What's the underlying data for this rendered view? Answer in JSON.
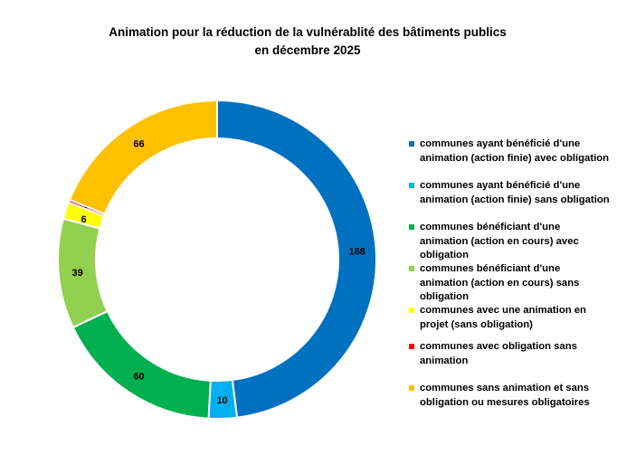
{
  "chart_data": {
    "type": "pie",
    "variant": "donut",
    "title": "Animation pour la réduction de la vulnérablité des bâtiments publics",
    "subtitle": "en décembre 2025",
    "legend_position": "right",
    "categories": [
      "communes ayant bénéficié d'une animation (action finie) avec obligation",
      "communes ayant bénéficié d'une animation (action finie) sans obligation",
      "communes bénéficiant d'une animation (action en cours) avec obligation",
      "communes bénéficiant d'une animation (action en cours) sans obligation",
      "communes avec une animation en projet (sans obligation)",
      "communes  avec obligation sans animation",
      "communes sans animation et sans obligation ou mesures obligatoires"
    ],
    "values": [
      168,
      10,
      60,
      39,
      6,
      1,
      66
    ],
    "colors": [
      "#0070C0",
      "#00B0F0",
      "#00B050",
      "#92D050",
      "#FFFF00",
      "#FF0000",
      "#FFC000"
    ]
  }
}
